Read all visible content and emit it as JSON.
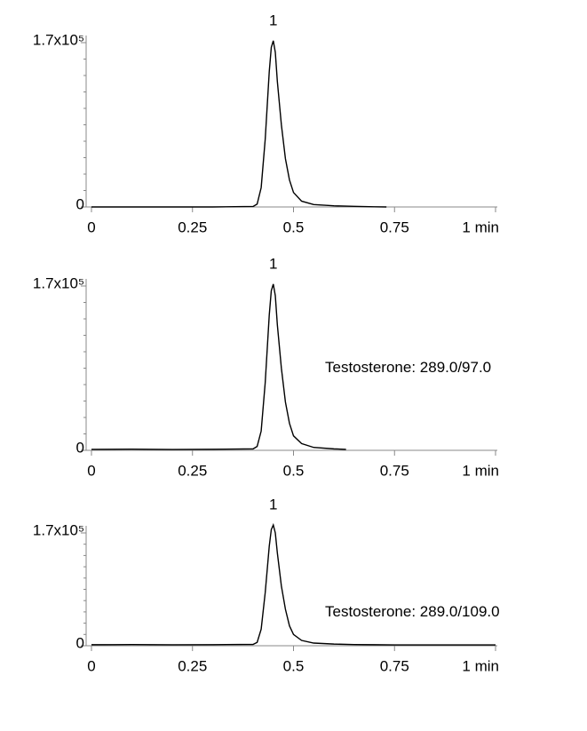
{
  "chart_data": [
    {
      "type": "line",
      "peak_label": "1",
      "x": [
        0,
        0.1,
        0.2,
        0.3,
        0.4,
        0.41,
        0.42,
        0.43,
        0.44,
        0.445,
        0.45,
        0.455,
        0.46,
        0.47,
        0.48,
        0.49,
        0.5,
        0.52,
        0.55,
        0.6,
        0.65,
        0.7,
        0.73
      ],
      "series": [
        {
          "color": "#000000",
          "values": [
            0,
            0,
            0,
            0,
            500,
            3000,
            20000,
            70000,
            140000,
            165000,
            172000,
            160000,
            130000,
            85000,
            50000,
            28000,
            15000,
            6000,
            2500,
            1200,
            600,
            200,
            0
          ]
        }
      ],
      "xlim": [
        0,
        1
      ],
      "xticks": [
        0,
        0.25,
        0.5,
        0.75,
        {
          "value": 1,
          "label": "1 min"
        }
      ],
      "ylim": [
        0,
        170000
      ],
      "yticks": [
        0,
        {
          "value": 170000,
          "label": "1.7x10⁵"
        }
      ]
    },
    {
      "type": "line",
      "peak_label": "1",
      "annotation": "Testosterone: 289.0/97.0",
      "x": [
        0,
        0.1,
        0.2,
        0.3,
        0.4,
        0.41,
        0.42,
        0.43,
        0.44,
        0.445,
        0.45,
        0.455,
        0.46,
        0.47,
        0.48,
        0.49,
        0.5,
        0.52,
        0.55,
        0.6,
        0.63
      ],
      "series": [
        {
          "color": "#000000",
          "values": [
            1000,
            1200,
            900,
            1100,
            1500,
            4000,
            20000,
            70000,
            140000,
            165000,
            172000,
            160000,
            130000,
            85000,
            50000,
            28000,
            15000,
            7000,
            3000,
            1500,
            1000
          ]
        }
      ],
      "xlim": [
        0,
        1
      ],
      "xticks": [
        0,
        0.25,
        0.5,
        0.75,
        {
          "value": 1,
          "label": "1 min"
        }
      ],
      "ylim": [
        0,
        170000
      ],
      "yticks": [
        0,
        {
          "value": 170000,
          "label": "1.7x10⁵"
        }
      ]
    },
    {
      "type": "line",
      "peak_label": "1",
      "annotation": "Testosterone: 289.0/109.0",
      "x": [
        0,
        0.1,
        0.2,
        0.3,
        0.4,
        0.41,
        0.42,
        0.43,
        0.44,
        0.445,
        0.45,
        0.455,
        0.46,
        0.47,
        0.48,
        0.49,
        0.5,
        0.52,
        0.55,
        0.6,
        0.65,
        0.7,
        0.75,
        1
      ],
      "series": [
        {
          "color": "#000000",
          "values": [
            1500,
            1700,
            1400,
            1600,
            2000,
            5000,
            25000,
            80000,
            150000,
            175000,
            182000,
            170000,
            140000,
            90000,
            55000,
            30000,
            17000,
            8000,
            4000,
            2500,
            1800,
            1500,
            1200,
            1200
          ]
        }
      ],
      "xlim": [
        0,
        1
      ],
      "xticks": [
        0,
        0.25,
        0.5,
        0.75,
        {
          "value": 1,
          "label": "1 min"
        }
      ],
      "ylim": [
        0,
        170000
      ],
      "yticks": [
        0,
        {
          "value": 170000,
          "label": "1.7x10⁵"
        }
      ]
    }
  ]
}
